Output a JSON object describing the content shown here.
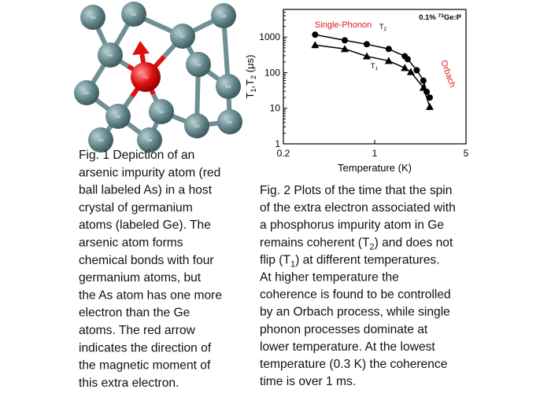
{
  "figure1": {
    "atom_label_ge": "Ge",
    "atom_label_as": "As",
    "caption_lines": [
      "Fig. 1  Depiction of an",
      "arsenic impurity atom (red",
      "ball labeled As) in a host",
      "crystal of germanium",
      "atoms (labeled Ge). The",
      "arsenic atom forms",
      "chemical bonds with four",
      "germanium atoms, but",
      "the As atom has one more",
      "electron than the Ge",
      "atoms. The red arrow",
      "indicates the direction of",
      "the magnetic moment of",
      "this extra electron."
    ]
  },
  "figure2": {
    "caption_lines": [
      [
        "Fig. 2  Plots of the time that the spin"
      ],
      [
        "of the extra electron associated with"
      ],
      [
        "a phosphorus impurity atom in Ge"
      ],
      [
        "remains coherent (T",
        "2",
        ") and does not"
      ],
      [
        "flip (T",
        "1",
        ") at different temperatures."
      ],
      [
        "At higher temperature the"
      ],
      [
        "coherence is found to be controlled"
      ],
      [
        "by an Orbach process, while single"
      ],
      [
        "phonon processes dominate at"
      ],
      [
        "lower temperature.  At the lowest"
      ],
      [
        "temperature (0.3 K) the coherence"
      ],
      [
        "time is over 1 ms."
      ]
    ]
  },
  "chart_data": {
    "type": "scatter",
    "x_label": "Temperature (K)",
    "y_label": [
      "T",
      "1",
      ",T",
      "2",
      " (μs)"
    ],
    "sample_label": [
      "0.1% ",
      "73",
      "Ge:P"
    ],
    "annotations": {
      "single_phonon": "Single-Phonon",
      "orbach": "Orbach",
      "t2": [
        "T",
        "2"
      ],
      "t1": [
        "T",
        "1"
      ]
    },
    "annotation_color": "#e8141c",
    "log_x": true,
    "log_y": true,
    "xlim": [
      0.2,
      5
    ],
    "ylim": [
      1,
      6000
    ],
    "xticks": [
      0.2,
      1,
      5
    ],
    "yticks": [
      1,
      10,
      100,
      1000
    ],
    "series": [
      {
        "name": "T2",
        "color": "#000000",
        "marker": "circle",
        "x": [
          0.35,
          0.59,
          0.87,
          1.28,
          1.7,
          1.79,
          2.1,
          2.36,
          2.5,
          2.64
        ],
        "values": [
          1170,
          815,
          630,
          465,
          290,
          240,
          117,
          60,
          29,
          20
        ]
      },
      {
        "name": "T1",
        "color": "#000000",
        "marker": "triangle",
        "x": [
          0.35,
          0.59,
          0.87,
          1.28,
          1.7,
          1.89,
          2.36,
          2.64
        ],
        "values": [
          600,
          465,
          290,
          215,
          136,
          105,
          38,
          11
        ]
      }
    ]
  }
}
